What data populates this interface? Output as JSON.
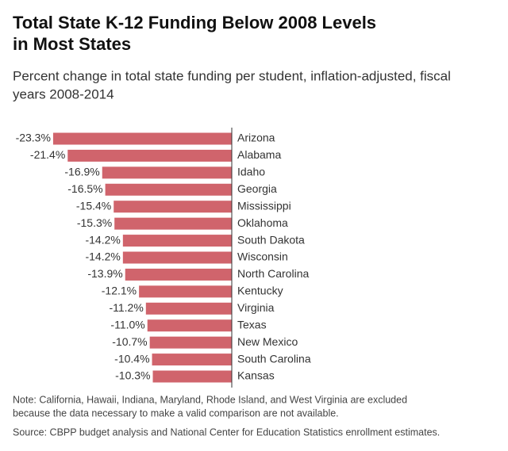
{
  "chart_data": {
    "type": "hbar",
    "title": [
      "Total State K-12 Funding Below 2008 Levels",
      "in Most States"
    ],
    "subtitle": [
      "Percent change in total state funding per student, inflation-adjusted, fiscal",
      "years 2008-2014"
    ],
    "categories": [
      "Arizona",
      "Alabama",
      "Idaho",
      "Georgia",
      "Mississippi",
      "Oklahoma",
      "South Dakota",
      "Wisconsin",
      "North Carolina",
      "Kentucky",
      "Virginia",
      "Texas",
      "New Mexico",
      "South Carolina",
      "Kansas"
    ],
    "values": [
      -23.3,
      -21.4,
      -16.9,
      -16.5,
      -15.4,
      -15.3,
      -14.2,
      -14.2,
      -13.9,
      -12.1,
      -11.2,
      -11.0,
      -10.7,
      -10.4,
      -10.3
    ],
    "value_labels": [
      "-23.3%",
      "-21.4%",
      "-16.9%",
      "-16.5%",
      "-15.4%",
      "-15.3%",
      "-14.2%",
      "-14.2%",
      "-13.9%",
      "-12.1%",
      "-11.2%",
      "-11.0%",
      "-10.7%",
      "-10.4%",
      "-10.3%"
    ],
    "color": "#d0646c",
    "xlim": [
      -25,
      0
    ],
    "notes": [
      "Note: California, Hawaii, Indiana, Maryland, Rhode Island, and West Virginia are excluded",
      "because the data necessary to make a valid comparison are not available."
    ],
    "source": "Source: CBPP budget analysis and National Center for Education Statistics enrollment estimates."
  }
}
